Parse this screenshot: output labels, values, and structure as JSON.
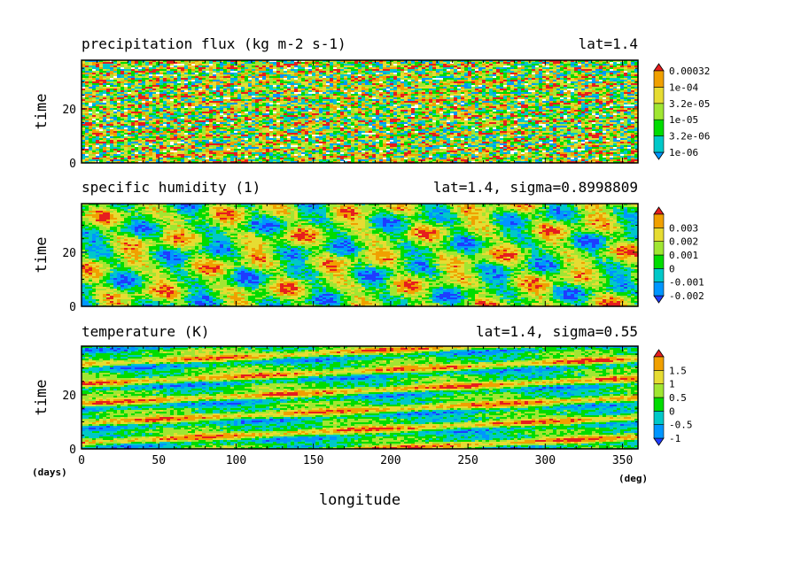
{
  "figure": {
    "x_unit": "(days)",
    "x_unit_right": "(deg)",
    "xlabel": "longitude"
  },
  "chart_data": [
    {
      "type": "heatmap",
      "title": "precipitation flux (kg m-2 s-1)",
      "subtitle": "lat=1.4",
      "xlabel": "longitude",
      "ylabel": "time",
      "xlim": [
        0,
        360
      ],
      "ylim": [
        0,
        38
      ],
      "x_ticks": [
        "0",
        "50",
        "100",
        "150",
        "200",
        "250",
        "300",
        "350"
      ],
      "y_ticks": [
        "0",
        "20"
      ],
      "colorbar": {
        "labels": [
          "1e-06",
          "3.2e-06",
          "1e-05",
          "3.2e-05",
          "1e-04",
          "0.00032"
        ],
        "colors": [
          "#0096ff",
          "#00c8c8",
          "#00dc00",
          "#a0e632",
          "#e6dc32",
          "#f0a000",
          "#e61e1e"
        ],
        "below_min_color": "#ffffff"
      },
      "pattern": "noisy"
    },
    {
      "type": "heatmap",
      "title": "specific humidity (1)",
      "subtitle": "lat=1.4, sigma=0.8998809",
      "xlabel": "longitude",
      "ylabel": "time",
      "xlim": [
        0,
        360
      ],
      "ylim": [
        0,
        38
      ],
      "x_ticks": [
        "0",
        "50",
        "100",
        "150",
        "200",
        "250",
        "300",
        "350"
      ],
      "y_ticks": [
        "0",
        "20"
      ],
      "colorbar": {
        "labels": [
          "-0.002",
          "-0.001",
          "0",
          "0.001",
          "0.002",
          "0.003"
        ],
        "colors": [
          "#1e3cff",
          "#0096ff",
          "#00c8c8",
          "#00dc00",
          "#a0e632",
          "#e6dc32",
          "#f0a000",
          "#e61e1e"
        ]
      },
      "pattern": "blobs"
    },
    {
      "type": "heatmap",
      "title": "temperature (K)",
      "subtitle": "lat=1.4, sigma=0.55",
      "xlabel": "longitude",
      "ylabel": "time",
      "xlim": [
        0,
        360
      ],
      "ylim": [
        0,
        38
      ],
      "x_ticks": [
        "0",
        "50",
        "100",
        "150",
        "200",
        "250",
        "300",
        "350"
      ],
      "y_ticks": [
        "0",
        "20"
      ],
      "colorbar": {
        "labels": [
          "-1",
          "-0.5",
          "0",
          "0.5",
          "1",
          "1.5"
        ],
        "colors": [
          "#1e3cff",
          "#0096ff",
          "#00c8c8",
          "#00dc00",
          "#a0e632",
          "#e6dc32",
          "#f0a000",
          "#e61e1e"
        ]
      },
      "pattern": "stripes"
    }
  ]
}
